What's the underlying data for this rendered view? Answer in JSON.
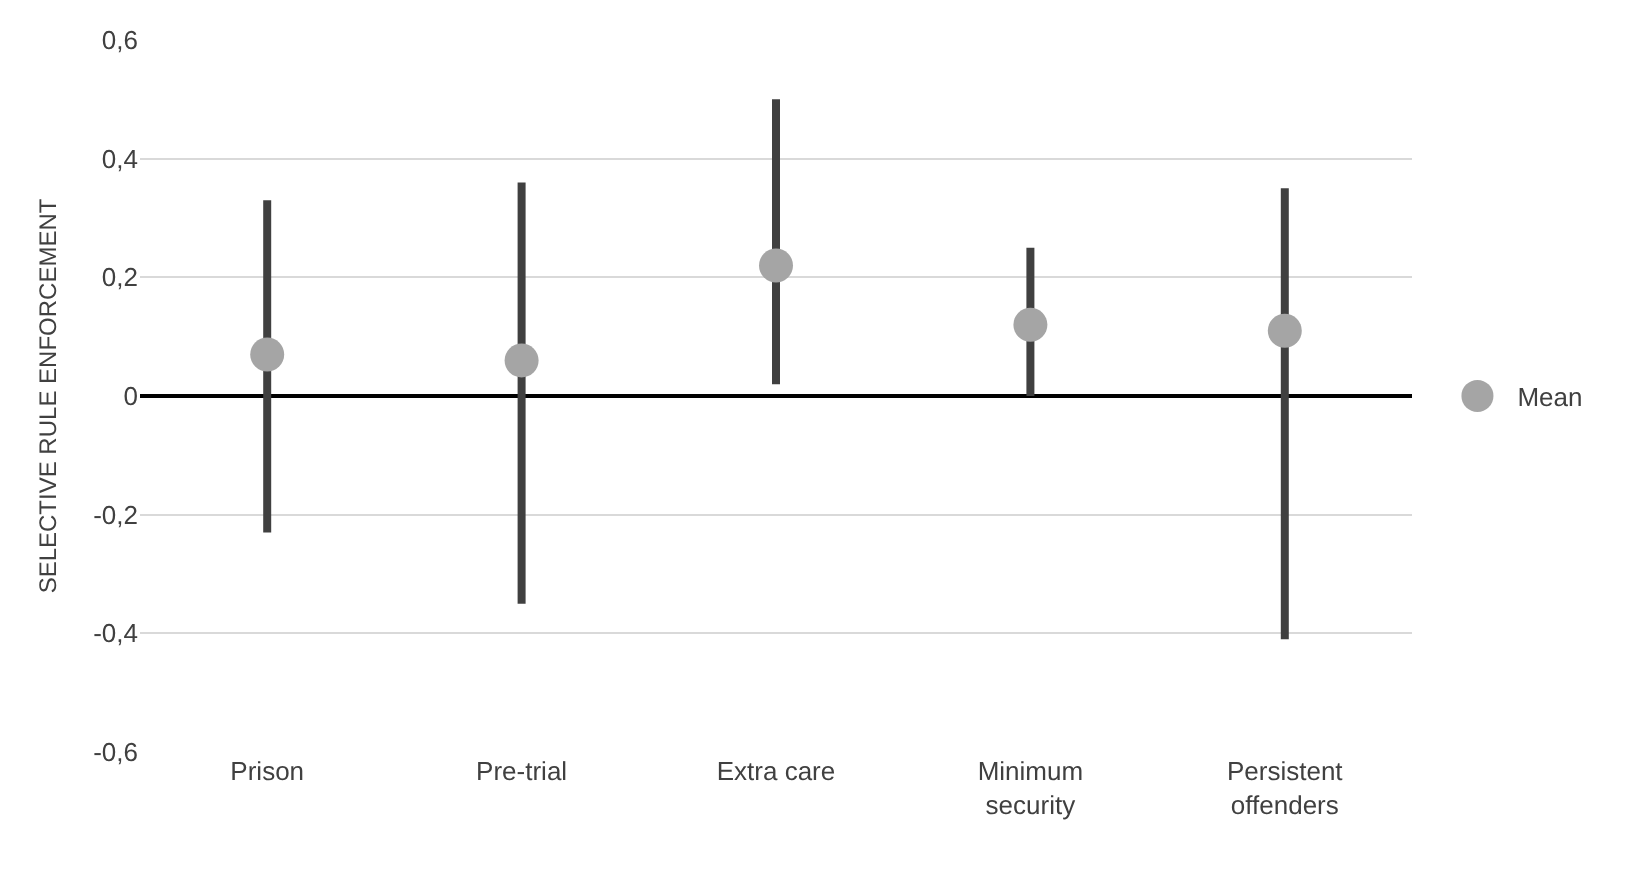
{
  "chart_data": {
    "type": "scatter",
    "ylabel": "SELECTIVE RULE ENFORCEMENT",
    "categories": [
      "Prison",
      "Pre-trial",
      "Extra care",
      "Minimum\nsecurity",
      "Persistent\noffenders"
    ],
    "series": [
      {
        "name": "Mean",
        "color": "#a5a5a5",
        "values": [
          0.07,
          0.06,
          0.22,
          0.12,
          0.11
        ],
        "errors": [
          [
            -0.23,
            0.33
          ],
          [
            -0.35,
            0.36
          ],
          [
            0.02,
            0.5
          ],
          [
            0.0,
            0.25
          ],
          [
            -0.41,
            0.35
          ]
        ]
      }
    ],
    "ylim": [
      -0.6,
      0.6
    ],
    "yticks": [
      {
        "value": -0.6,
        "label": "-0,6"
      },
      {
        "value": -0.4,
        "label": "-0,4"
      },
      {
        "value": -0.2,
        "label": "-0,2"
      },
      0,
      {
        "value": 0.2,
        "label": "0,2"
      },
      {
        "value": 0.4,
        "label": "0,4"
      },
      {
        "value": 0.6,
        "label": "0,6"
      }
    ],
    "grid": "y",
    "legend": "right",
    "marker": "circle"
  }
}
